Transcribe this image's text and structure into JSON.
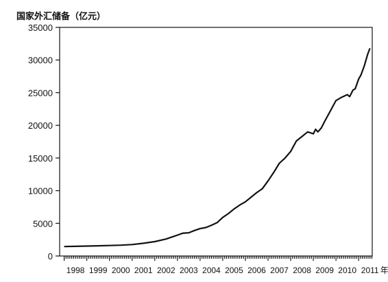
{
  "chart_data": {
    "type": "line",
    "title": "",
    "ylabel": "国家外汇储备（亿元）",
    "xlabel": "",
    "x_unit_suffix": "年",
    "ylim": [
      0,
      35000
    ],
    "yticks": [
      0,
      5000,
      10000,
      15000,
      20000,
      25000,
      30000,
      35000
    ],
    "xlim": [
      1997.8,
      2011.6
    ],
    "xtick_labels": [
      "1998",
      "1999",
      "2000",
      "2001",
      "2002",
      "2003",
      "2004",
      "2005",
      "2006",
      "2007",
      "2008",
      "2009",
      "2010",
      "2011"
    ],
    "grid": false,
    "series": [
      {
        "name": "",
        "x": [
          1998.0,
          1998.5,
          1999.0,
          1999.5,
          2000.0,
          2000.5,
          2001.0,
          2001.5,
          2002.0,
          2002.5,
          2003.0,
          2003.25,
          2003.5,
          2003.75,
          2004.0,
          2004.25,
          2004.5,
          2004.75,
          2005.0,
          2005.25,
          2005.5,
          2005.75,
          2006.0,
          2006.25,
          2006.5,
          2006.75,
          2007.0,
          2007.25,
          2007.5,
          2007.75,
          2008.0,
          2008.25,
          2008.5,
          2008.75,
          2009.0,
          2009.1,
          2009.2,
          2009.35,
          2009.5,
          2009.75,
          2010.0,
          2010.25,
          2010.5,
          2010.6,
          2010.75,
          2010.85,
          2011.0,
          2011.1,
          2011.25,
          2011.4,
          2011.5
        ],
        "y": [
          1450,
          1480,
          1520,
          1560,
          1600,
          1660,
          1750,
          1950,
          2200,
          2600,
          3200,
          3500,
          3550,
          3900,
          4200,
          4350,
          4700,
          5100,
          5900,
          6500,
          7200,
          7800,
          8300,
          9000,
          9700,
          10300,
          11500,
          12800,
          14200,
          15000,
          16000,
          17600,
          18300,
          19000,
          18700,
          19400,
          19000,
          19600,
          20600,
          22200,
          23800,
          24300,
          24700,
          24400,
          25400,
          25600,
          27100,
          27700,
          29100,
          30900,
          31800
        ]
      }
    ]
  }
}
